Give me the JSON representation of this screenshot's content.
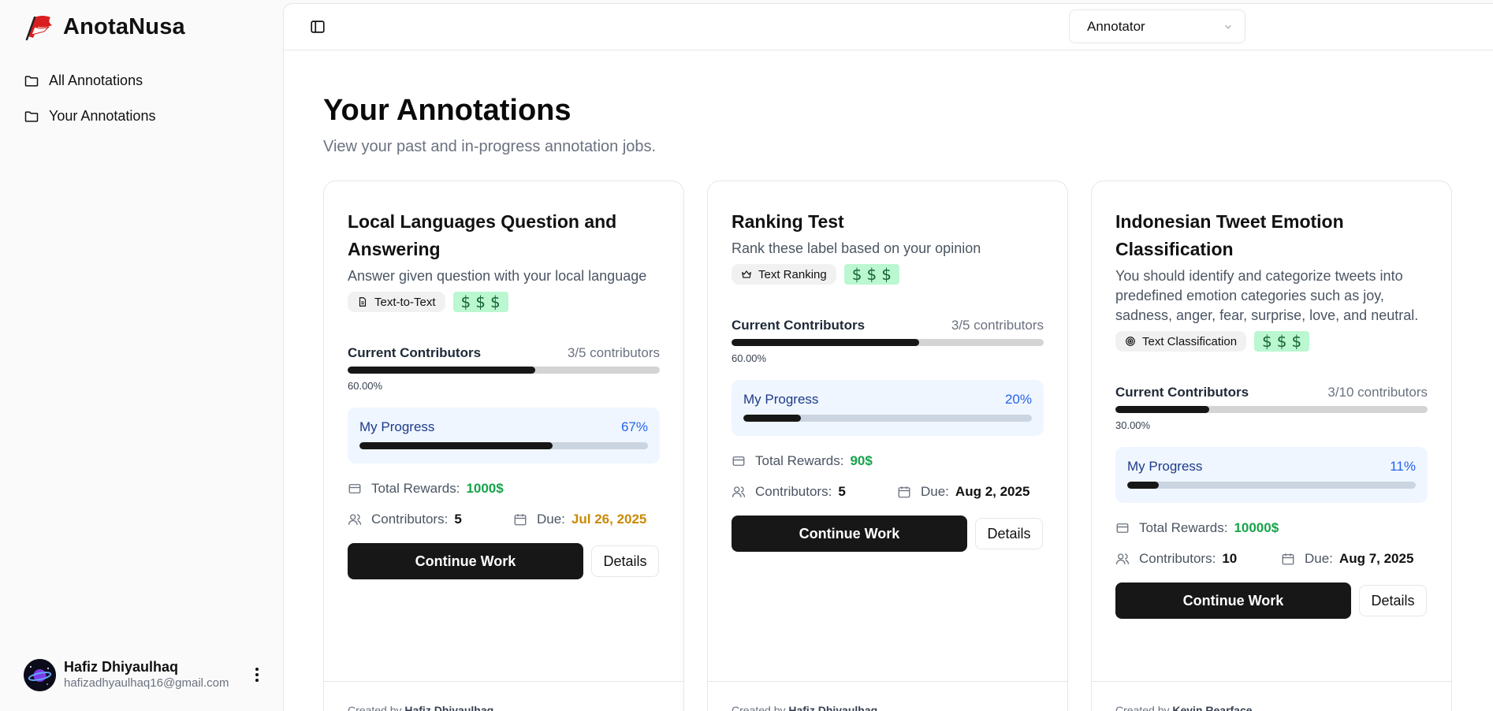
{
  "brand": {
    "name": "AnotaNusa"
  },
  "sidebar": {
    "items": [
      {
        "label": "All Annotations",
        "icon": "folder-icon"
      },
      {
        "label": "Your Annotations",
        "icon": "folder-icon"
      }
    ],
    "user": {
      "name": "Hafiz Dhiyaulhaq",
      "email": "hafizadhyaulhaq16@gmail.com"
    }
  },
  "topbar": {
    "role": "Annotator"
  },
  "page": {
    "title": "Your Annotations",
    "subtitle": "View your past and in-progress annotation jobs."
  },
  "cards": [
    {
      "title": "Local Languages Question and Answering",
      "description": "Answer given question with your local language",
      "tag": "Text-to-Text",
      "tag_icon": "document-icon",
      "reward_symbol": "$",
      "contributors_label": "Current Contributors",
      "contributors_count": "3/5 contributors",
      "contributors_pct": "60.00%",
      "contributors_fraction": 0.6,
      "progress_label": "My Progress",
      "progress_value": "67%",
      "progress_fraction": 0.67,
      "rewards_label": "Total Rewards:",
      "rewards_value": "1000$",
      "contributors_meta_label": "Contributors:",
      "contributors_meta_value": "5",
      "due_label": "Due:",
      "due_value": "Jul 26, 2025",
      "continue_label": "Continue Work",
      "details_label": "Details",
      "created_prefix": "Created by",
      "created_by": "Hafiz Dhiyaulhaq"
    },
    {
      "title": "Ranking Test",
      "description": "Rank these label based on your opinion",
      "tag": "Text Ranking",
      "tag_icon": "crown-icon",
      "reward_symbol": "$",
      "contributors_label": "Current Contributors",
      "contributors_count": "3/5 contributors",
      "contributors_pct": "60.00%",
      "contributors_fraction": 0.6,
      "progress_label": "My Progress",
      "progress_value": "20%",
      "progress_fraction": 0.2,
      "rewards_label": "Total Rewards:",
      "rewards_value": "90$",
      "contributors_meta_label": "Contributors:",
      "contributors_meta_value": "5",
      "due_label": "Due:",
      "due_value": "Aug 2, 2025",
      "continue_label": "Continue Work",
      "details_label": "Details",
      "created_prefix": "Created by",
      "created_by": "Hafiz Dhiyaulhaq"
    },
    {
      "title": "Indonesian Tweet Emotion Classification",
      "description": "You should identify and categorize tweets into predefined emotion categories such as joy, sadness, anger, fear, surprise, love, and neutral.",
      "tag": "Text Classification",
      "tag_icon": "target-icon",
      "reward_symbol": "$",
      "contributors_label": "Current Contributors",
      "contributors_count": "3/10 contributors",
      "contributors_pct": "30.00%",
      "contributors_fraction": 0.3,
      "progress_label": "My Progress",
      "progress_value": "11%",
      "progress_fraction": 0.11,
      "rewards_label": "Total Rewards:",
      "rewards_value": "10000$",
      "contributors_meta_label": "Contributors:",
      "contributors_meta_value": "10",
      "due_label": "Due:",
      "due_value": "Aug 7, 2025",
      "continue_label": "Continue Work",
      "details_label": "Details",
      "created_prefix": "Created by",
      "created_by": "Kevin Rearface"
    }
  ],
  "colors": {
    "accent": "#171717",
    "reward": "#16a34a",
    "due_warning": "#ca8a04",
    "progress_bg": "#eff6ff"
  }
}
